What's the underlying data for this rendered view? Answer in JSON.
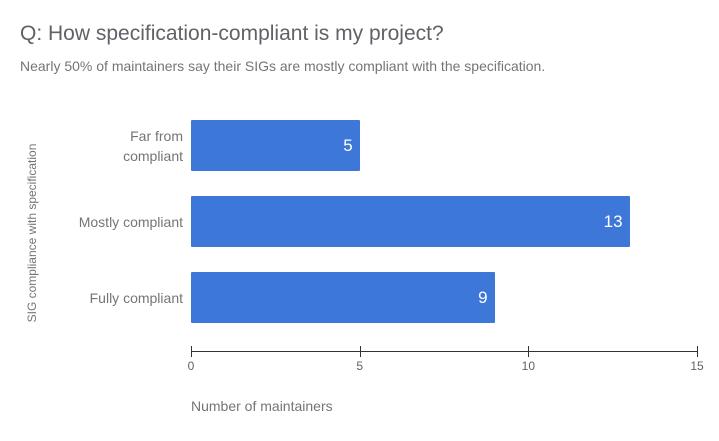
{
  "chart_data": {
    "type": "bar",
    "orientation": "horizontal",
    "title": "Q: How specification-compliant is my project?",
    "subtitle": "Nearly 50% of maintainers say their SIGs are mostly compliant with the specification.",
    "xlabel": "Number of maintainers",
    "ylabel": "SIG compliance with specification",
    "categories": [
      "Far from compliant",
      "Mostly compliant",
      "Fully compliant"
    ],
    "values": [
      5,
      13,
      9
    ],
    "xlim": [
      0,
      15
    ],
    "xticks": [
      0,
      5,
      10,
      15
    ],
    "grid": false,
    "legend": "none",
    "colors": {
      "bar": "#3d78d8",
      "title": "#5f6368",
      "subtitle": "#757575",
      "category_label": "#757575",
      "tick_label": "#616161",
      "axis_line": "#333333",
      "value_label": "#ffffff",
      "background": "#ffffff"
    }
  }
}
